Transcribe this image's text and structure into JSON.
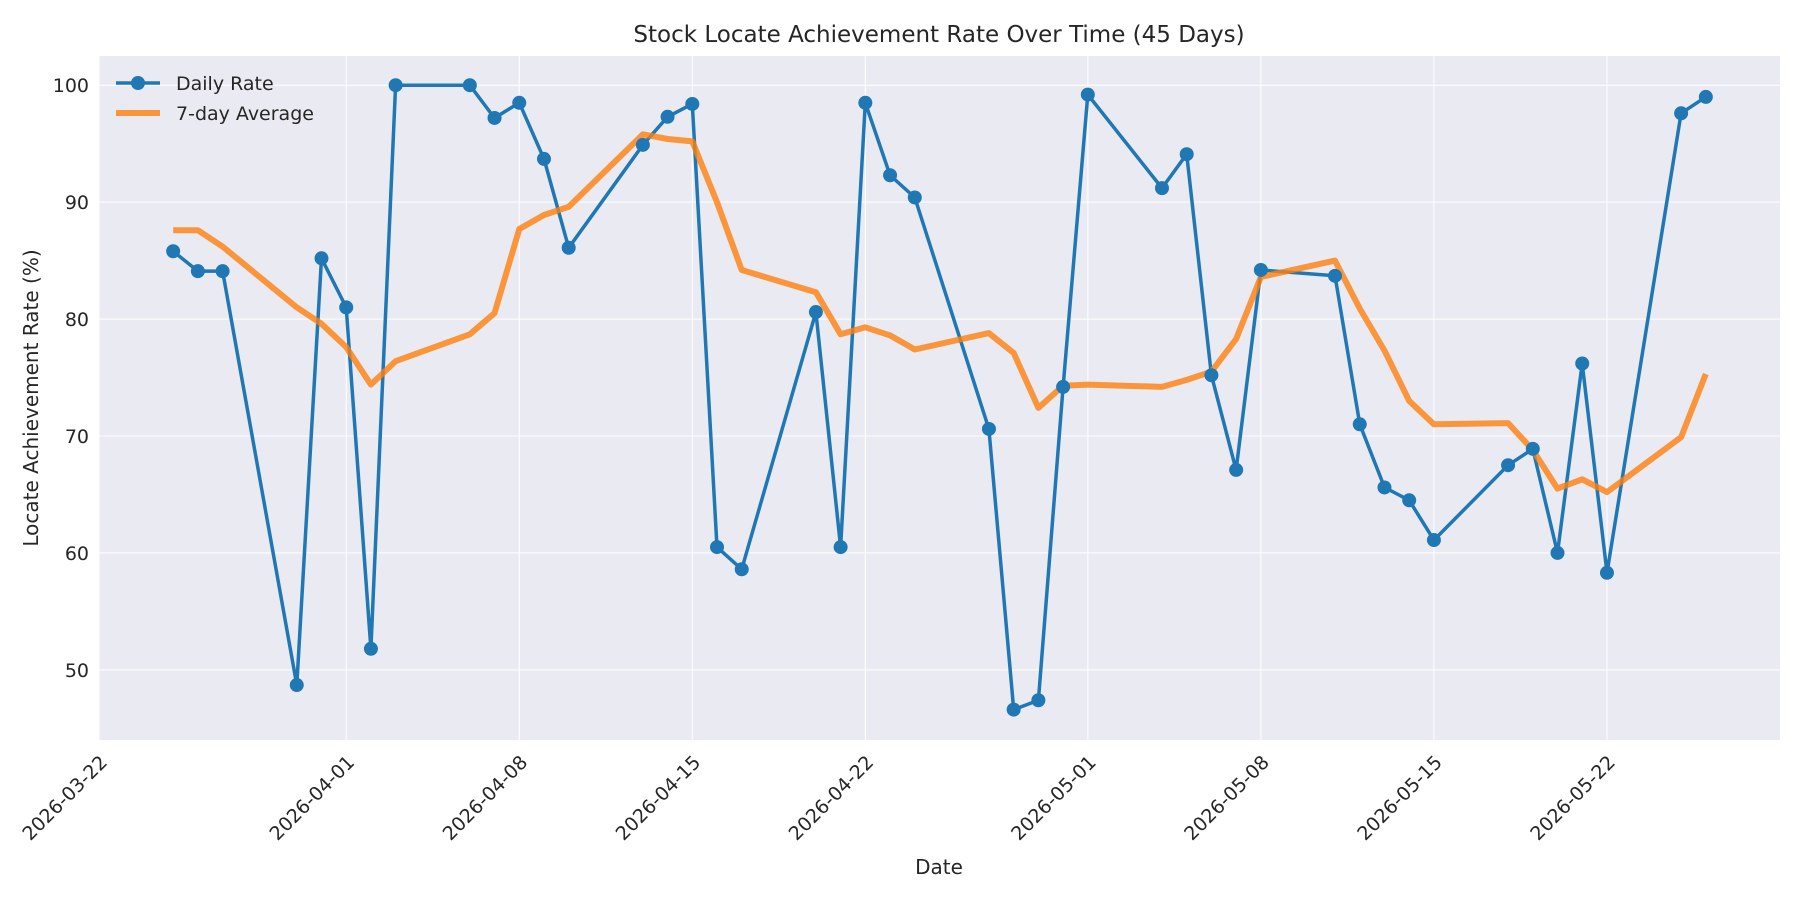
{
  "chart_data": {
    "type": "line",
    "title": "Stock Locate Achievement Rate Over Time (45 Days)",
    "xlabel": "Date",
    "ylabel": "Locate Achievement Rate (%)",
    "xlim": [
      "2026-03-22",
      "2026-05-29"
    ],
    "ylim": [
      44,
      102.5
    ],
    "x_ticks": [
      "2026-03-22",
      "2026-04-01",
      "2026-04-08",
      "2026-04-15",
      "2026-04-22",
      "2026-05-01",
      "2026-05-08",
      "2026-05-15",
      "2026-05-22"
    ],
    "y_ticks": [
      50,
      60,
      70,
      80,
      90,
      100
    ],
    "grid": true,
    "legend_position": "top-left",
    "colors": {
      "daily": "#1f77b4",
      "average": "#ff7f0e",
      "plot_bg": "#eaeaf2"
    },
    "series": [
      {
        "name": "Daily Rate",
        "points": [
          [
            "2026-03-25",
            85.8
          ],
          [
            "2026-03-26",
            84.1
          ],
          [
            "2026-03-27",
            84.1
          ],
          [
            "2026-03-30",
            48.7
          ],
          [
            "2026-03-31",
            85.2
          ],
          [
            "2026-04-01",
            81.0
          ],
          [
            "2026-04-02",
            51.8
          ],
          [
            "2026-04-03",
            100.0
          ],
          [
            "2026-04-06",
            100.0
          ],
          [
            "2026-04-07",
            97.2
          ],
          [
            "2026-04-08",
            98.5
          ],
          [
            "2026-04-09",
            93.7
          ],
          [
            "2026-04-10",
            86.1
          ],
          [
            "2026-04-13",
            94.9
          ],
          [
            "2026-04-14",
            97.3
          ],
          [
            "2026-04-15",
            98.4
          ],
          [
            "2026-04-16",
            60.5
          ],
          [
            "2026-04-17",
            58.6
          ],
          [
            "2026-04-20",
            80.6
          ],
          [
            "2026-04-21",
            60.5
          ],
          [
            "2026-04-22",
            98.5
          ],
          [
            "2026-04-23",
            92.3
          ],
          [
            "2026-04-24",
            90.4
          ],
          [
            "2026-04-27",
            70.6
          ],
          [
            "2026-04-28",
            46.6
          ],
          [
            "2026-04-29",
            47.4
          ],
          [
            "2026-04-30",
            74.2
          ],
          [
            "2026-05-01",
            99.2
          ],
          [
            "2026-05-04",
            91.2
          ],
          [
            "2026-05-05",
            94.1
          ],
          [
            "2026-05-06",
            75.2
          ],
          [
            "2026-05-07",
            67.1
          ],
          [
            "2026-05-08",
            84.2
          ],
          [
            "2026-05-11",
            83.7
          ],
          [
            "2026-05-12",
            71.0
          ],
          [
            "2026-05-13",
            65.6
          ],
          [
            "2026-05-14",
            64.5
          ],
          [
            "2026-05-15",
            61.1
          ],
          [
            "2026-05-18",
            67.5
          ],
          [
            "2026-05-19",
            68.9
          ],
          [
            "2026-05-20",
            60.0
          ],
          [
            "2026-05-21",
            76.2
          ],
          [
            "2026-05-22",
            58.3
          ],
          [
            "2026-05-25",
            97.6
          ],
          [
            "2026-05-26",
            99.0
          ]
        ]
      },
      {
        "name": "7-day Average",
        "points": [
          [
            "2026-03-25",
            87.6
          ],
          [
            "2026-03-26",
            87.6
          ],
          [
            "2026-03-27",
            86.2
          ],
          [
            "2026-03-30",
            81.0
          ],
          [
            "2026-03-31",
            79.6
          ],
          [
            "2026-04-01",
            77.6
          ],
          [
            "2026-04-02",
            74.4
          ],
          [
            "2026-04-03",
            76.4
          ],
          [
            "2026-04-06",
            78.7
          ],
          [
            "2026-04-07",
            80.5
          ],
          [
            "2026-04-08",
            87.7
          ],
          [
            "2026-04-09",
            88.9
          ],
          [
            "2026-04-10",
            89.6
          ],
          [
            "2026-04-13",
            95.8
          ],
          [
            "2026-04-14",
            95.4
          ],
          [
            "2026-04-15",
            95.2
          ],
          [
            "2026-04-16",
            90.0
          ],
          [
            "2026-04-17",
            84.2
          ],
          [
            "2026-04-20",
            82.3
          ],
          [
            "2026-04-21",
            78.7
          ],
          [
            "2026-04-22",
            79.3
          ],
          [
            "2026-04-23",
            78.6
          ],
          [
            "2026-04-24",
            77.4
          ],
          [
            "2026-04-27",
            78.8
          ],
          [
            "2026-04-28",
            77.1
          ],
          [
            "2026-04-29",
            72.4
          ],
          [
            "2026-04-30",
            74.3
          ],
          [
            "2026-05-01",
            74.4
          ],
          [
            "2026-05-04",
            74.2
          ],
          [
            "2026-05-05",
            74.8
          ],
          [
            "2026-05-06",
            75.5
          ],
          [
            "2026-05-07",
            78.3
          ],
          [
            "2026-05-08",
            83.6
          ],
          [
            "2026-05-11",
            85.0
          ],
          [
            "2026-05-12",
            80.9
          ],
          [
            "2026-05-13",
            77.3
          ],
          [
            "2026-05-14",
            73.0
          ],
          [
            "2026-05-15",
            71.0
          ],
          [
            "2026-05-18",
            71.1
          ],
          [
            "2026-05-19",
            68.8
          ],
          [
            "2026-05-20",
            65.5
          ],
          [
            "2026-05-21",
            66.3
          ],
          [
            "2026-05-22",
            65.2
          ],
          [
            "2026-05-25",
            69.9
          ],
          [
            "2026-05-26",
            75.3
          ]
        ]
      }
    ]
  }
}
